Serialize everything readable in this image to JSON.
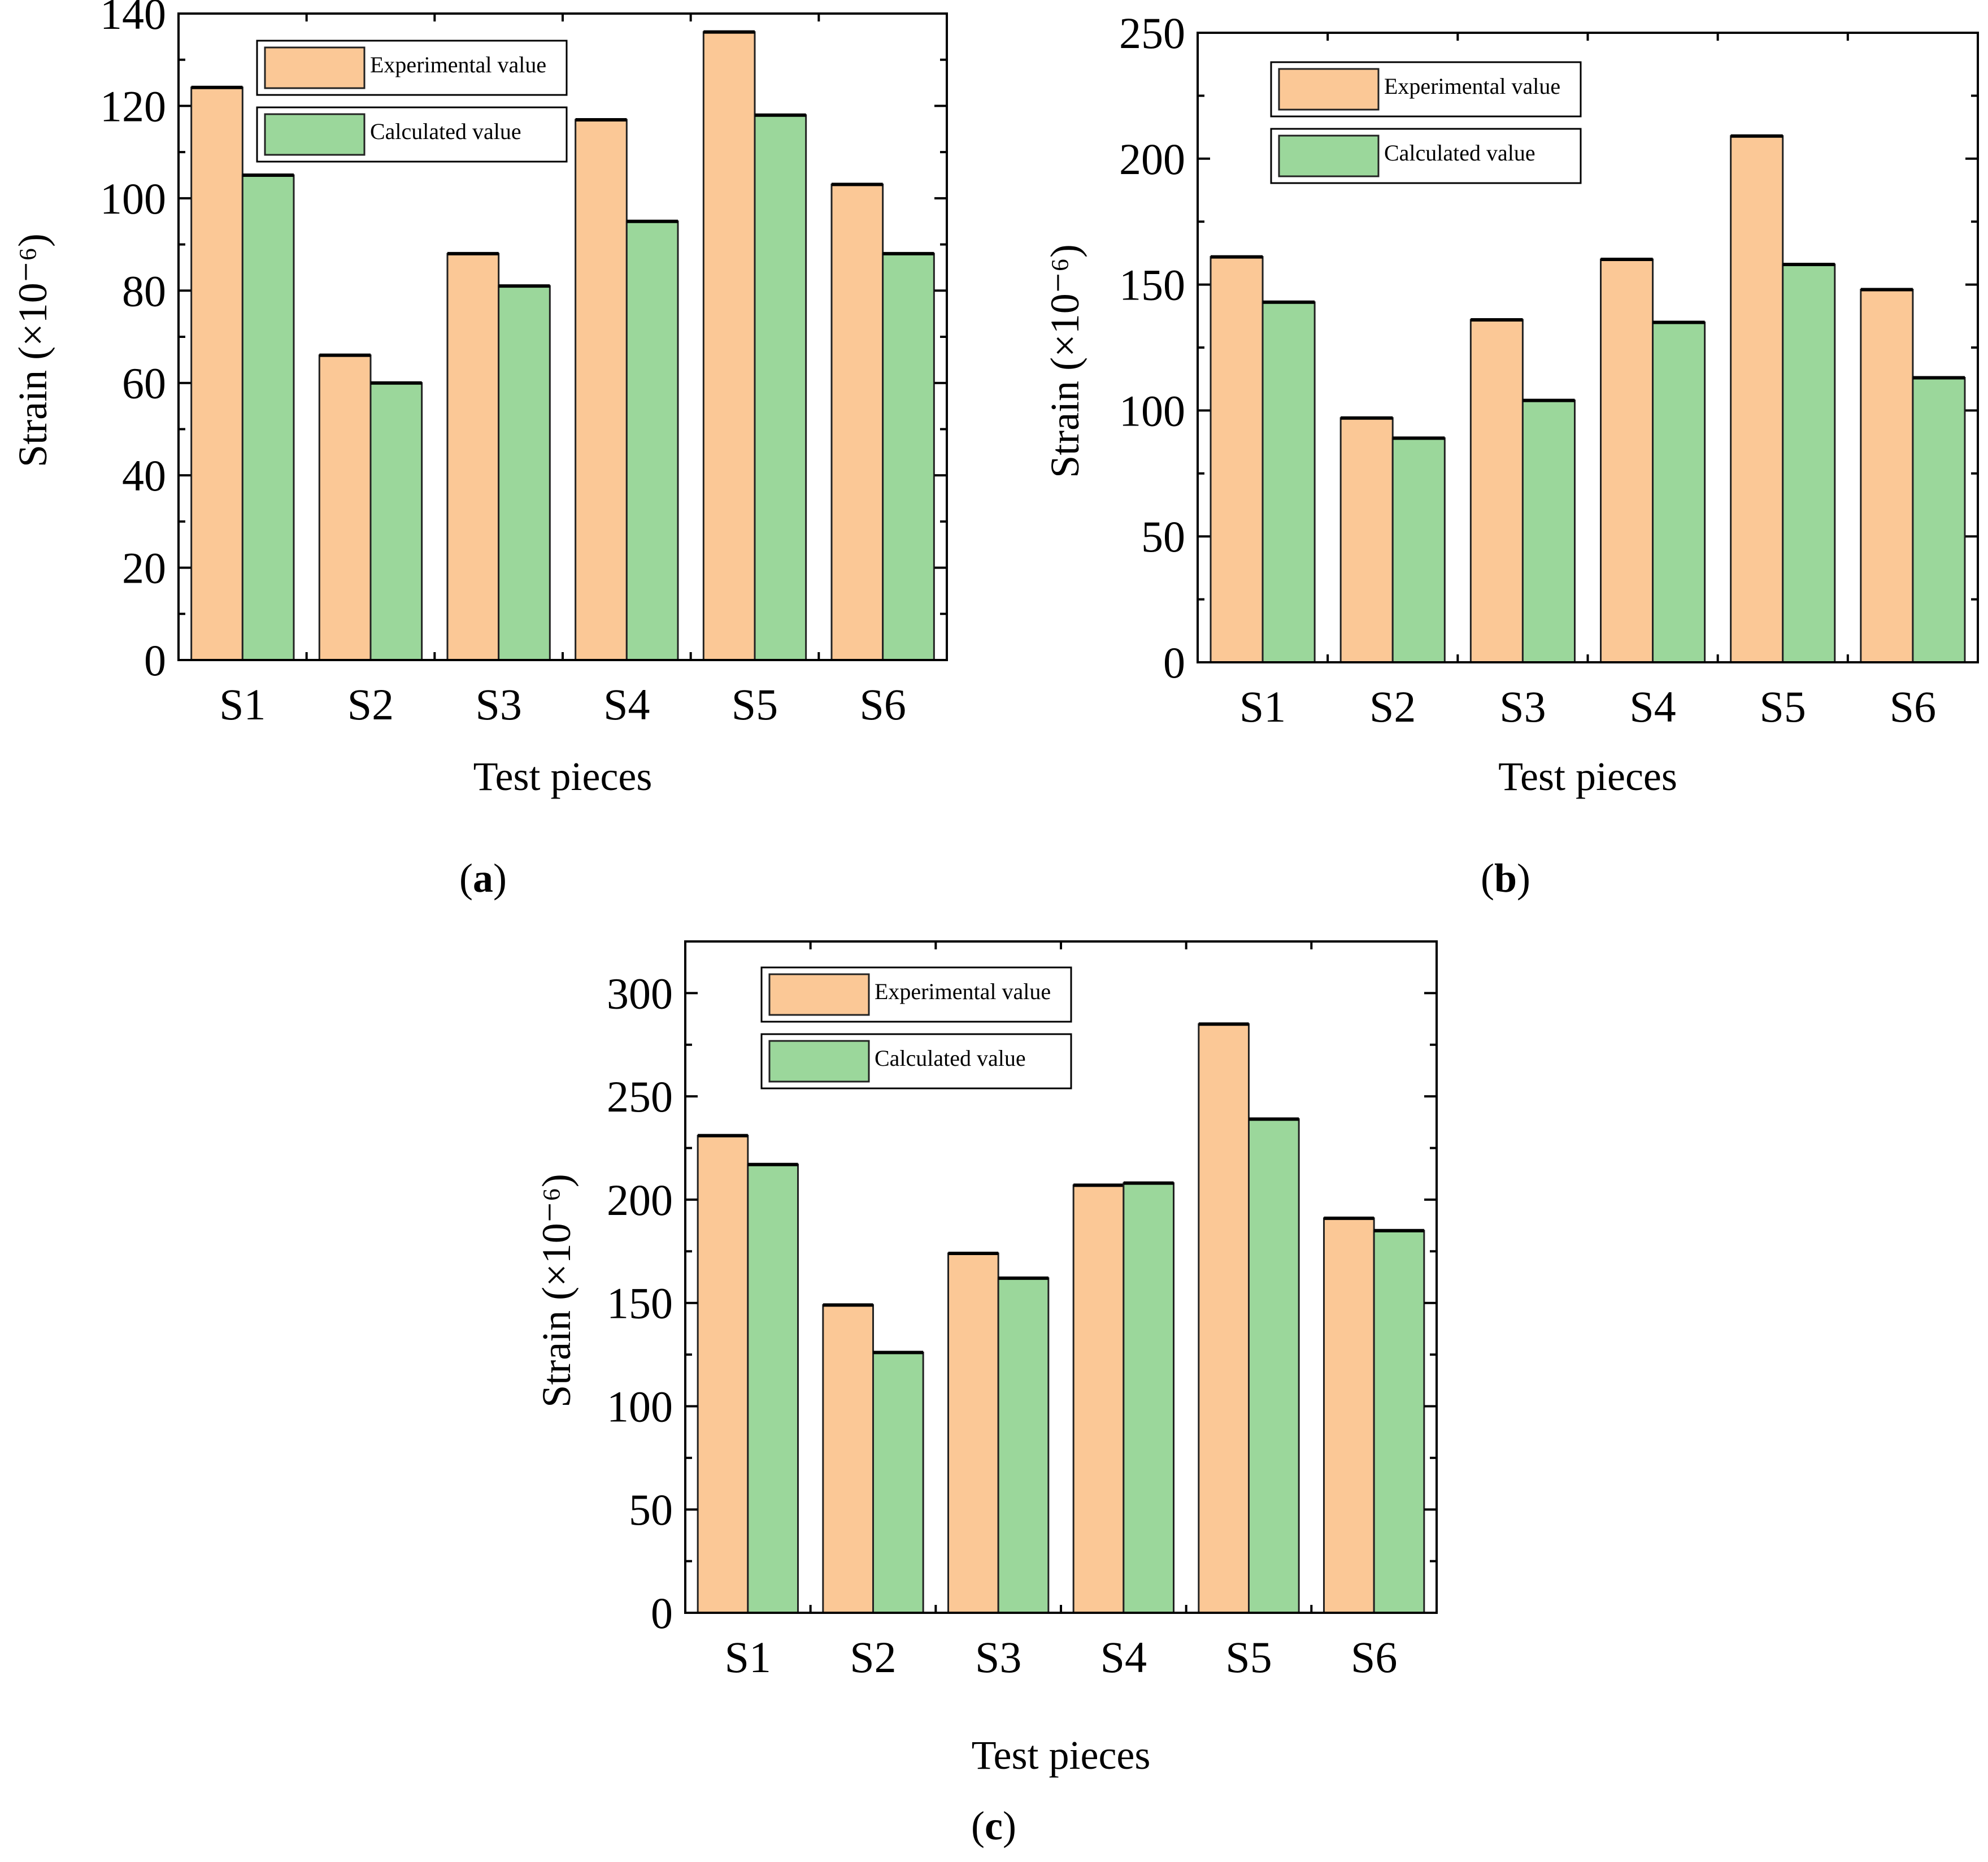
{
  "figure": {
    "captions": [
      {
        "open": "(",
        "letter": "a",
        "close": ")"
      },
      {
        "open": "(",
        "letter": "b",
        "close": ")"
      },
      {
        "open": "(",
        "letter": "c",
        "close": ")"
      }
    ]
  },
  "colors": {
    "experimental": "#fbc896",
    "calculated": "#9bd79b",
    "axis": "#000000"
  },
  "chart_data": [
    {
      "id": "a",
      "type": "bar",
      "categories": [
        "S1",
        "S2",
        "S3",
        "S4",
        "S5",
        "S6"
      ],
      "series": [
        {
          "name": "Experimental value",
          "values": [
            124,
            66,
            88,
            117,
            136,
            103
          ]
        },
        {
          "name": "Calculated value",
          "values": [
            105,
            60,
            81,
            95,
            118,
            88
          ]
        }
      ],
      "xlabel": "Test pieces",
      "ylabel": "Strain (×10⁻⁶)",
      "ylim": [
        0,
        140
      ],
      "yticks": [
        0,
        20,
        40,
        60,
        80,
        100,
        120,
        140
      ],
      "legend": "top-left"
    },
    {
      "id": "b",
      "type": "bar",
      "categories": [
        "S1",
        "S2",
        "S3",
        "S4",
        "S5",
        "S6"
      ],
      "series": [
        {
          "name": "Experimental value",
          "values": [
            161,
            97,
            136,
            160,
            209,
            148
          ]
        },
        {
          "name": "Calculated value",
          "values": [
            143,
            89,
            104,
            135,
            158,
            113
          ]
        }
      ],
      "xlabel": "Test pieces",
      "ylabel": "Strain (×10⁻⁶)",
      "ylim": [
        0,
        250
      ],
      "yticks": [
        0,
        50,
        100,
        150,
        200,
        250
      ],
      "legend": "top-left"
    },
    {
      "id": "c",
      "type": "bar",
      "categories": [
        "S1",
        "S2",
        "S3",
        "S4",
        "S5",
        "S6"
      ],
      "series": [
        {
          "name": "Experimental value",
          "values": [
            231,
            149,
            174,
            207,
            285,
            191
          ]
        },
        {
          "name": "Calculated value",
          "values": [
            217,
            126,
            162,
            208,
            239,
            185
          ]
        }
      ],
      "xlabel": "Test pieces",
      "ylabel": "Strain (×10⁻⁶)",
      "ylim": [
        0,
        325
      ],
      "yticks": [
        0,
        50,
        100,
        150,
        200,
        250,
        300
      ],
      "legend": "top-left"
    }
  ]
}
